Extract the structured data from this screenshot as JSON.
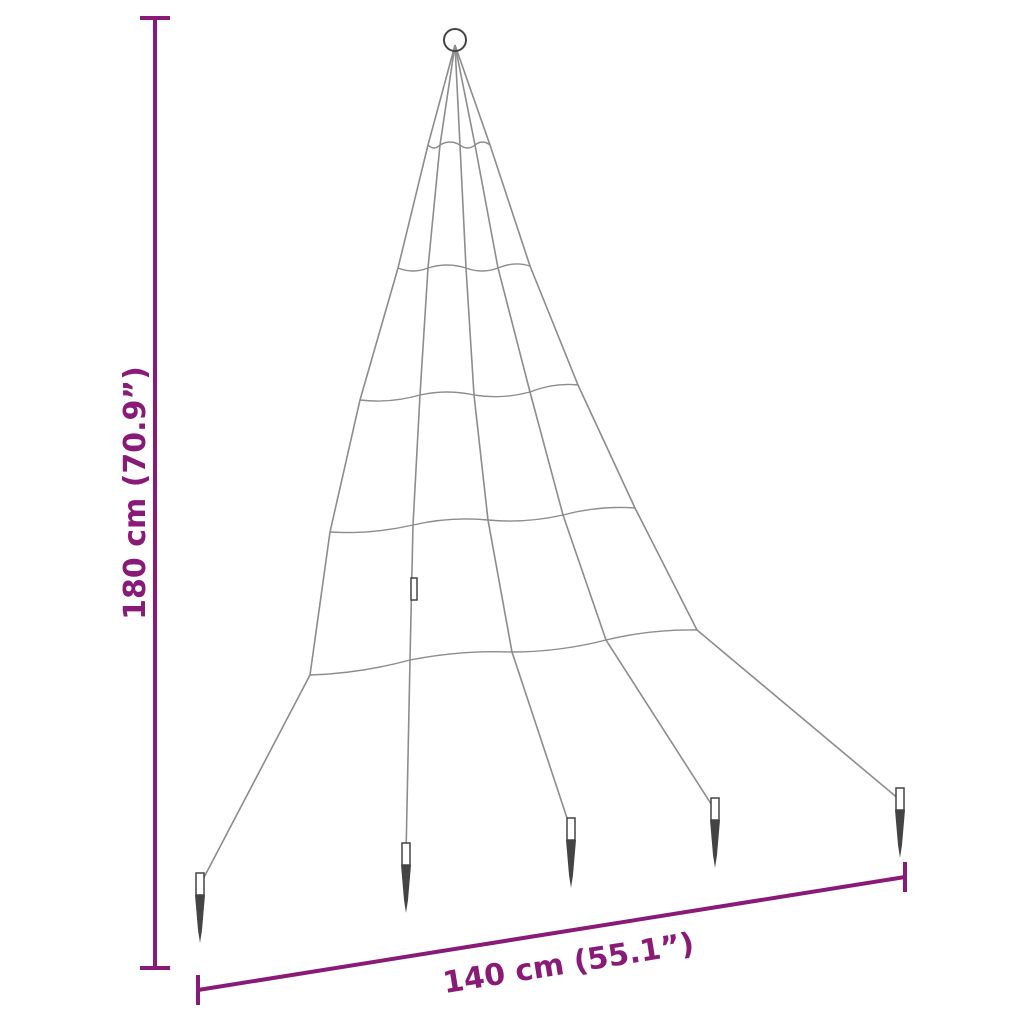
{
  "dimensions": {
    "height_label": "180 cm (70.9”)",
    "width_label": "140 cm (55.1”)"
  },
  "colors": {
    "dimension": "#8a1a78",
    "wire": "#8c8c8c",
    "stake": "#444444"
  },
  "product": {
    "icon": "led-tree-light-net-with-stakes"
  }
}
